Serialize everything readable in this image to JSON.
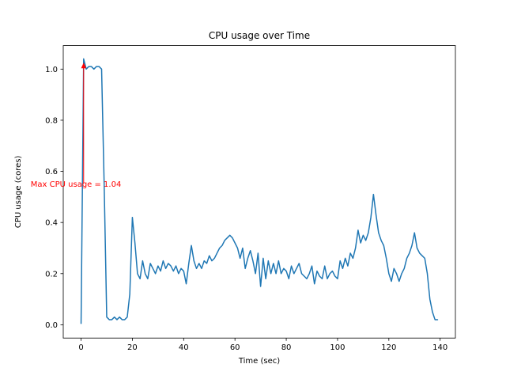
{
  "chart_data": {
    "type": "line",
    "title": "CPU usage over Time",
    "xlabel": "Time (sec)",
    "ylabel": "CPU usage (cores)",
    "xlim": [
      -6.95,
      145.95
    ],
    "ylim": [
      -0.052,
      1.092
    ],
    "xtick_values": [
      0,
      20,
      40,
      60,
      80,
      100,
      120,
      140
    ],
    "xtick_labels": [
      "0",
      "20",
      "40",
      "60",
      "80",
      "100",
      "120",
      "140"
    ],
    "ytick_values": [
      0.0,
      0.2,
      0.4,
      0.6,
      0.8,
      1.0
    ],
    "ytick_labels": [
      "0.0",
      "0.2",
      "0.4",
      "0.6",
      "0.8",
      "1.0"
    ],
    "grid": false,
    "legend": "none",
    "line_color": "#1f77b4",
    "axis_color": "#000000",
    "background_color": "#ffffff",
    "annotation": {
      "text": "Max CPU usage = 1.04",
      "color": "#ff0000",
      "max_value": 1.04,
      "text_xy": [
        -2,
        0.55
      ],
      "arrow_tail": [
        1,
        0.555
      ],
      "arrow_head": [
        1,
        1.025
      ]
    },
    "series": [
      {
        "name": "cpu-usage",
        "points": [
          [
            0,
            0.005
          ],
          [
            1,
            1.04
          ],
          [
            2,
            1.0
          ],
          [
            3,
            1.01
          ],
          [
            4,
            1.01
          ],
          [
            5,
            1.0
          ],
          [
            6,
            1.01
          ],
          [
            7,
            1.01
          ],
          [
            8,
            1.0
          ],
          [
            9,
            0.55
          ],
          [
            10,
            0.03
          ],
          [
            11,
            0.02
          ],
          [
            12,
            0.02
          ],
          [
            13,
            0.03
          ],
          [
            14,
            0.02
          ],
          [
            15,
            0.03
          ],
          [
            16,
            0.02
          ],
          [
            17,
            0.02
          ],
          [
            18,
            0.03
          ],
          [
            19,
            0.12
          ],
          [
            20,
            0.42
          ],
          [
            21,
            0.32
          ],
          [
            22,
            0.2
          ],
          [
            23,
            0.18
          ],
          [
            24,
            0.25
          ],
          [
            25,
            0.2
          ],
          [
            26,
            0.18
          ],
          [
            27,
            0.24
          ],
          [
            28,
            0.22
          ],
          [
            29,
            0.2
          ],
          [
            30,
            0.23
          ],
          [
            31,
            0.21
          ],
          [
            32,
            0.25
          ],
          [
            33,
            0.22
          ],
          [
            34,
            0.24
          ],
          [
            35,
            0.23
          ],
          [
            36,
            0.21
          ],
          [
            37,
            0.23
          ],
          [
            38,
            0.2
          ],
          [
            39,
            0.22
          ],
          [
            40,
            0.21
          ],
          [
            41,
            0.16
          ],
          [
            42,
            0.24
          ],
          [
            43,
            0.31
          ],
          [
            44,
            0.25
          ],
          [
            45,
            0.22
          ],
          [
            46,
            0.24
          ],
          [
            47,
            0.22
          ],
          [
            48,
            0.25
          ],
          [
            49,
            0.24
          ],
          [
            50,
            0.27
          ],
          [
            51,
            0.25
          ],
          [
            52,
            0.26
          ],
          [
            53,
            0.28
          ],
          [
            54,
            0.3
          ],
          [
            55,
            0.31
          ],
          [
            56,
            0.33
          ],
          [
            57,
            0.34
          ],
          [
            58,
            0.35
          ],
          [
            59,
            0.34
          ],
          [
            60,
            0.32
          ],
          [
            61,
            0.3
          ],
          [
            62,
            0.26
          ],
          [
            63,
            0.3
          ],
          [
            64,
            0.22
          ],
          [
            65,
            0.26
          ],
          [
            66,
            0.29
          ],
          [
            67,
            0.25
          ],
          [
            68,
            0.2
          ],
          [
            69,
            0.28
          ],
          [
            70,
            0.15
          ],
          [
            71,
            0.26
          ],
          [
            72,
            0.18
          ],
          [
            73,
            0.25
          ],
          [
            74,
            0.2
          ],
          [
            75,
            0.24
          ],
          [
            76,
            0.2
          ],
          [
            77,
            0.25
          ],
          [
            78,
            0.2
          ],
          [
            79,
            0.22
          ],
          [
            80,
            0.21
          ],
          [
            81,
            0.18
          ],
          [
            82,
            0.23
          ],
          [
            83,
            0.2
          ],
          [
            84,
            0.22
          ],
          [
            85,
            0.24
          ],
          [
            86,
            0.2
          ],
          [
            87,
            0.19
          ],
          [
            88,
            0.18
          ],
          [
            89,
            0.2
          ],
          [
            90,
            0.23
          ],
          [
            91,
            0.16
          ],
          [
            92,
            0.21
          ],
          [
            93,
            0.19
          ],
          [
            94,
            0.18
          ],
          [
            95,
            0.23
          ],
          [
            96,
            0.18
          ],
          [
            97,
            0.2
          ],
          [
            98,
            0.21
          ],
          [
            99,
            0.19
          ],
          [
            100,
            0.18
          ],
          [
            101,
            0.25
          ],
          [
            102,
            0.22
          ],
          [
            103,
            0.26
          ],
          [
            104,
            0.23
          ],
          [
            105,
            0.28
          ],
          [
            106,
            0.26
          ],
          [
            107,
            0.3
          ],
          [
            108,
            0.37
          ],
          [
            109,
            0.32
          ],
          [
            110,
            0.35
          ],
          [
            111,
            0.33
          ],
          [
            112,
            0.36
          ],
          [
            113,
            0.42
          ],
          [
            114,
            0.51
          ],
          [
            115,
            0.43
          ],
          [
            116,
            0.36
          ],
          [
            117,
            0.33
          ],
          [
            118,
            0.31
          ],
          [
            119,
            0.26
          ],
          [
            120,
            0.2
          ],
          [
            121,
            0.17
          ],
          [
            122,
            0.22
          ],
          [
            123,
            0.2
          ],
          [
            124,
            0.17
          ],
          [
            125,
            0.2
          ],
          [
            126,
            0.22
          ],
          [
            127,
            0.26
          ],
          [
            128,
            0.28
          ],
          [
            129,
            0.31
          ],
          [
            130,
            0.36
          ],
          [
            131,
            0.3
          ],
          [
            132,
            0.28
          ],
          [
            133,
            0.27
          ],
          [
            134,
            0.26
          ],
          [
            135,
            0.2
          ],
          [
            136,
            0.1
          ],
          [
            137,
            0.05
          ],
          [
            138,
            0.02
          ],
          [
            139,
            0.02
          ]
        ]
      }
    ]
  }
}
